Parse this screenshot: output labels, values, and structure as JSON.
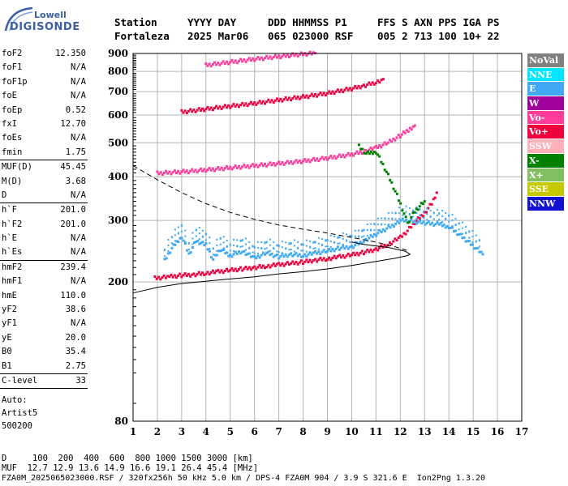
{
  "logo": {
    "line1": "Lowell",
    "line2": "DIGISONDE"
  },
  "header": {
    "row1": [
      "Station",
      "YYYY DAY",
      "DDD HHMMSS P1",
      "FFS S AXN PPS IGA PS"
    ],
    "row2": [
      "Fortaleza",
      "2025 Mar06",
      "065 023000 RSF",
      "005 2 713 100 10+ 22"
    ]
  },
  "params": {
    "group1": [
      {
        "label": "foF2",
        "value": "12.350"
      },
      {
        "label": "foF1",
        "value": "N/A"
      },
      {
        "label": "foF1p",
        "value": "N/A"
      },
      {
        "label": "foE",
        "value": "N/A"
      },
      {
        "label": "foEp",
        "value": "0.52"
      },
      {
        "label": "fxI",
        "value": "12.70"
      },
      {
        "label": "foEs",
        "value": "N/A"
      },
      {
        "label": "fmin",
        "value": "1.75"
      }
    ],
    "group2": [
      {
        "label": "MUF(D)",
        "value": "45.45"
      },
      {
        "label": "M(D)",
        "value": "3.68"
      },
      {
        "label": "D",
        "value": "N/A"
      }
    ],
    "group3": [
      {
        "label": "h`F",
        "value": "201.0"
      },
      {
        "label": "h`F2",
        "value": "201.0"
      },
      {
        "label": "h`E",
        "value": "N/A"
      },
      {
        "label": "h`Es",
        "value": "N/A"
      }
    ],
    "group4": [
      {
        "label": "hmF2",
        "value": "239.4"
      },
      {
        "label": "hmF1",
        "value": "N/A"
      },
      {
        "label": "hmE",
        "value": "110.0"
      },
      {
        "label": "yF2",
        "value": "38.6"
      },
      {
        "label": "yF1",
        "value": "N/A"
      },
      {
        "label": "yE",
        "value": "20.0"
      },
      {
        "label": "B0",
        "value": "35.4"
      },
      {
        "label": "B1",
        "value": "2.75"
      }
    ],
    "clevel": {
      "label": "C-level",
      "value": "33"
    },
    "auto": [
      "Auto:",
      "Artist5",
      "500200"
    ]
  },
  "legend": [
    {
      "label": "NoVal",
      "bg": "#808080",
      "fg": "#ffffff"
    },
    {
      "label": "NNE",
      "bg": "#00e5ff",
      "fg": "#ffffff"
    },
    {
      "label": "E",
      "bg": "#3fa9f5",
      "fg": "#ffffff"
    },
    {
      "label": "W",
      "bg": "#a0009c",
      "fg": "#ffffff"
    },
    {
      "label": "Vo-",
      "bg": "#ff3c9a",
      "fg": "#ffffff"
    },
    {
      "label": "Vo+",
      "bg": "#f0003c",
      "fg": "#ffffff"
    },
    {
      "label": "SSW",
      "bg": "#ffb0b8",
      "fg": "#ffffff"
    },
    {
      "label": "X-",
      "bg": "#008000",
      "fg": "#ffffff"
    },
    {
      "label": "X+",
      "bg": "#7fbf5f",
      "fg": "#ffffff"
    },
    {
      "label": "SSE",
      "bg": "#c8c800",
      "fg": "#ffffff"
    },
    {
      "label": "NNW",
      "bg": "#1010d0",
      "fg": "#ffffff"
    }
  ],
  "footer": {
    "line1": "D     100  200  400  600  800 1000 1500 3000 [km]",
    "line2": "MUF  12.7 12.9 13.6 14.9 16.6 19.1 26.4 45.4 [MHz]",
    "line3": "FZA0M_2025065023000.RSF / 320fx256h 50 kHz 5.0 km / DPS-4 FZA0M 904 / 3.9 S 321.6 E  Ion2Png 1.3.20"
  },
  "chart_data": {
    "type": "scatter",
    "xlim": [
      1,
      17
    ],
    "ylim": [
      80,
      900
    ],
    "xticks": [
      1,
      2,
      3,
      4,
      5,
      6,
      7,
      8,
      9,
      10,
      11,
      12,
      13,
      14,
      15,
      16,
      17
    ],
    "yticks": [
      80,
      200,
      300,
      400,
      500,
      600,
      700,
      800,
      900
    ],
    "grid": true,
    "xscale": "linear",
    "yscale": "log",
    "series": [
      {
        "name": "Vo+",
        "color": "#f0003c",
        "points": [
          [
            1.9,
            205
          ],
          [
            2.5,
            207
          ],
          [
            3,
            209
          ],
          [
            3.5,
            210
          ],
          [
            4,
            212
          ],
          [
            4.5,
            214
          ],
          [
            5,
            216
          ],
          [
            5.5,
            218
          ],
          [
            6,
            220
          ],
          [
            6.5,
            222
          ],
          [
            7,
            224
          ],
          [
            7.5,
            226
          ],
          [
            8,
            228
          ],
          [
            8.5,
            231
          ],
          [
            9,
            233
          ],
          [
            9.5,
            236
          ],
          [
            10,
            239
          ],
          [
            10.5,
            243
          ],
          [
            11,
            248
          ],
          [
            11.5,
            256
          ],
          [
            12,
            268
          ],
          [
            12.3,
            280
          ],
          [
            12.6,
            296
          ],
          [
            13,
            315
          ],
          [
            13.3,
            335
          ],
          [
            13.5,
            360
          ]
        ]
      },
      {
        "name": "Vo-",
        "color": "#ff3c9a",
        "points": [
          [
            2,
            409
          ],
          [
            3,
            413
          ],
          [
            4,
            418
          ],
          [
            5,
            424
          ],
          [
            6,
            430
          ],
          [
            7,
            436
          ],
          [
            8,
            443
          ],
          [
            9,
            452
          ],
          [
            10,
            463
          ],
          [
            10.5,
            472
          ],
          [
            11,
            484
          ],
          [
            11.5,
            500
          ],
          [
            12,
            524
          ],
          [
            12.4,
            548
          ],
          [
            12.6,
            560
          ]
        ]
      },
      {
        "name": "Vo+",
        "color": "#f0003c",
        "points": [
          [
            3,
            612
          ],
          [
            4,
            624
          ],
          [
            5,
            636
          ],
          [
            6,
            648
          ],
          [
            7,
            662
          ],
          [
            8,
            676
          ],
          [
            9,
            692
          ],
          [
            10,
            714
          ],
          [
            10.5,
            728
          ],
          [
            11,
            744
          ],
          [
            11.3,
            760
          ]
        ]
      },
      {
        "name": "Vo-",
        "color": "#ff3c9a",
        "points": [
          [
            4,
            833
          ],
          [
            5,
            850
          ],
          [
            6,
            867
          ],
          [
            7,
            882
          ],
          [
            8,
            896
          ],
          [
            8.5,
            902
          ]
        ]
      },
      {
        "name": "E",
        "color": "#3fa9f5",
        "points": [
          [
            2.3,
            230
          ],
          [
            2.6,
            250
          ],
          [
            3,
            270
          ],
          [
            3.3,
            240
          ],
          [
            3.6,
            262
          ],
          [
            4,
            255
          ],
          [
            4.3,
            232
          ],
          [
            4.6,
            248
          ],
          [
            5,
            238
          ],
          [
            5.5,
            245
          ],
          [
            6,
            234
          ],
          [
            6.5,
            242
          ],
          [
            7,
            236
          ],
          [
            7.5,
            240
          ],
          [
            8,
            238
          ],
          [
            8.5,
            242
          ],
          [
            9,
            245
          ],
          [
            9.5,
            250
          ],
          [
            10,
            252
          ],
          [
            10.5,
            262
          ],
          [
            12.1,
            300
          ],
          [
            13.6,
            292
          ],
          [
            14,
            288
          ],
          [
            15.4,
            240
          ]
        ]
      },
      {
        "name": "X-",
        "color": "#008000",
        "points": [
          [
            10.3,
            488
          ],
          [
            10.6,
            466
          ],
          [
            11,
            472
          ],
          [
            12.3,
            294
          ],
          [
            12.6,
            318
          ],
          [
            13,
            340
          ]
        ]
      }
    ]
  }
}
